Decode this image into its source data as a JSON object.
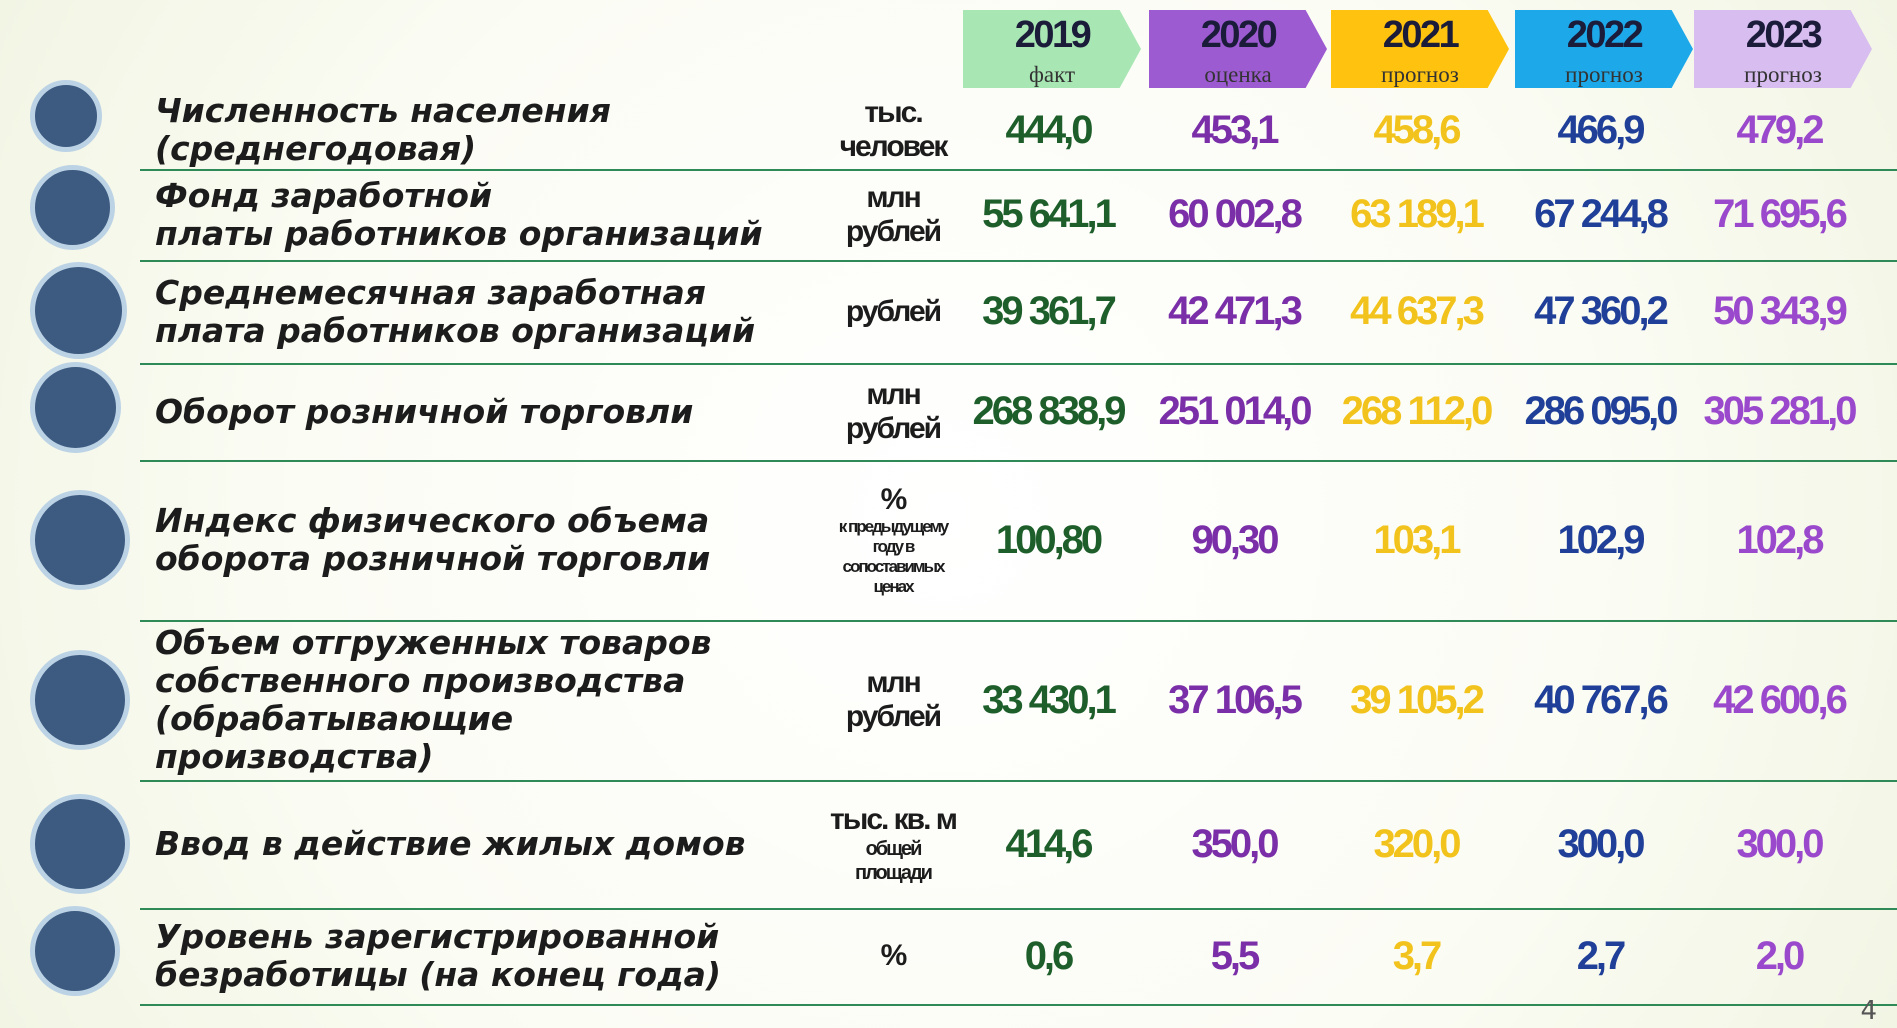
{
  "header": {
    "years": [
      "2019",
      "2020",
      "2021",
      "2022",
      "2023"
    ],
    "statuses": [
      "факт",
      "оценка",
      "прогноз",
      "прогноз",
      "прогноз"
    ]
  },
  "table": {
    "rows": [
      {
        "label": [
          "Численность населения",
          "(среднегодовая)"
        ],
        "unit": [
          "тыс.",
          "человек"
        ],
        "values": [
          "444,0",
          "453,1",
          "458,6",
          "466,9",
          "479,2"
        ]
      },
      {
        "label": [
          "Фонд заработной",
          "платы работников организаций"
        ],
        "unit": [
          "млн",
          "рублей"
        ],
        "values": [
          "55 641,1",
          "60 002,8",
          "63 189,1",
          "67 244,8",
          "71 695,6"
        ]
      },
      {
        "label": [
          "Среднемесячная заработная",
          "плата работников организаций"
        ],
        "unit": [
          "рублей"
        ],
        "values": [
          "39 361,7",
          "42 471,3",
          "44 637,3",
          "47 360,2",
          "50 343,9"
        ]
      },
      {
        "label": [
          "Оборот розничной торговли"
        ],
        "unit": [
          "млн",
          "рублей"
        ],
        "values": [
          "268 838,9",
          "251 014,0",
          "268 112,0",
          "286 095,0",
          "305 281,0"
        ]
      },
      {
        "label": [
          "Индекс физического объема",
          "оборота розничной торговли"
        ],
        "unit": [
          "%",
          "к предыдущему",
          "году в",
          "сопоставимых",
          "ценах"
        ],
        "values": [
          "100,80",
          "90,30",
          "103,1",
          "102,9",
          "102,8"
        ]
      },
      {
        "label": [
          "Объем отгруженных товаров",
          "собственного производства",
          "(обрабатывающие",
          "производства)"
        ],
        "unit": [
          "млн",
          "рублей"
        ],
        "values": [
          "33 430,1",
          "37 106,5",
          "39 105,2",
          "40 767,6",
          "42 600,6"
        ]
      },
      {
        "label": [
          "Ввод в действие жилых домов"
        ],
        "unit": [
          "тыс. кв. м",
          "общей",
          "площади"
        ],
        "values": [
          "414,6",
          "350,0",
          "320,0",
          "300,0",
          "300,0"
        ]
      },
      {
        "label": [
          "Уровень зарегистрированной",
          "безработицы (на конец года)"
        ],
        "unit": [
          "%"
        ],
        "values": [
          "0,6",
          "5,5",
          "3,7",
          "2,7",
          "2,0"
        ]
      }
    ]
  },
  "page_number": "4"
}
